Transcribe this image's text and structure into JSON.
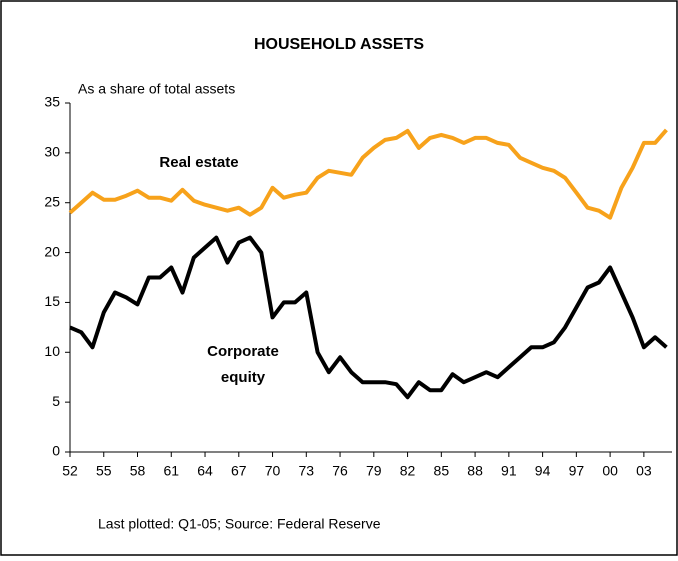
{
  "chart_data": {
    "type": "line",
    "title": "HOUSEHOLD ASSETS",
    "y_axis_label": "As a share of total assets",
    "footnote": "Last plotted: Q1-05; Source: Federal Reserve",
    "x": [
      1952,
      1953,
      1954,
      1955,
      1956,
      1957,
      1958,
      1959,
      1960,
      1961,
      1962,
      1963,
      1964,
      1965,
      1966,
      1967,
      1968,
      1969,
      1970,
      1971,
      1972,
      1973,
      1974,
      1975,
      1976,
      1977,
      1978,
      1979,
      1980,
      1981,
      1982,
      1983,
      1984,
      1985,
      1986,
      1987,
      1988,
      1989,
      1990,
      1991,
      1992,
      1993,
      1994,
      1995,
      1996,
      1997,
      1998,
      1999,
      2000,
      2001,
      2002,
      2003,
      2004,
      2005
    ],
    "series": [
      {
        "name": "Real estate",
        "color": "#f7a21b",
        "values": [
          24,
          25,
          26,
          25.3,
          25.3,
          25.7,
          26.2,
          25.5,
          25.5,
          25.2,
          26.3,
          25.2,
          24.8,
          24.5,
          24.2,
          24.5,
          23.8,
          24.5,
          26.5,
          25.5,
          25.8,
          26,
          27.5,
          28.2,
          28,
          27.8,
          29.5,
          30.5,
          31.3,
          31.5,
          32.2,
          30.5,
          31.5,
          31.8,
          31.5,
          31,
          31.5,
          31.5,
          31,
          30.8,
          29.5,
          29,
          28.5,
          28.2,
          27.5,
          26,
          24.5,
          24.2,
          23.5,
          26.5,
          28.5,
          31,
          31,
          32.3
        ]
      },
      {
        "name": "Corporate equity",
        "color": "#000000",
        "values": [
          12.5,
          12,
          10.5,
          14,
          16,
          15.5,
          14.8,
          17.5,
          17.5,
          18.5,
          16,
          19.5,
          20.5,
          21.5,
          19,
          21,
          21.5,
          20,
          13.5,
          15,
          15,
          16,
          10,
          8,
          9.5,
          8,
          7,
          7,
          7,
          6.8,
          5.5,
          7,
          6.2,
          6.2,
          7.8,
          7,
          7.5,
          8,
          7.5,
          8.5,
          9.5,
          10.5,
          10.5,
          11,
          12.5,
          14.5,
          16.5,
          17,
          18.5,
          16,
          13.5,
          10.5,
          11.5,
          10.5
        ]
      }
    ],
    "xlim": [
      1952,
      2005.5
    ],
    "xticks": [
      {
        "value": 1952,
        "label": "52"
      },
      {
        "value": 1955,
        "label": "55"
      },
      {
        "value": 1958,
        "label": "58"
      },
      {
        "value": 1961,
        "label": "61"
      },
      {
        "value": 1964,
        "label": "64"
      },
      {
        "value": 1967,
        "label": "67"
      },
      {
        "value": 1970,
        "label": "70"
      },
      {
        "value": 1973,
        "label": "73"
      },
      {
        "value": 1976,
        "label": "76"
      },
      {
        "value": 1979,
        "label": "79"
      },
      {
        "value": 1982,
        "label": "82"
      },
      {
        "value": 1985,
        "label": "85"
      },
      {
        "value": 1988,
        "label": "88"
      },
      {
        "value": 1991,
        "label": "91"
      },
      {
        "value": 1994,
        "label": "94"
      },
      {
        "value": 1997,
        "label": "97"
      },
      {
        "value": 2000,
        "label": "00"
      },
      {
        "value": 2003,
        "label": "03"
      }
    ],
    "ylim": [
      0,
      35
    ],
    "yticks": [
      0,
      5,
      10,
      15,
      20,
      25,
      30,
      35
    ],
    "grid": false
  }
}
